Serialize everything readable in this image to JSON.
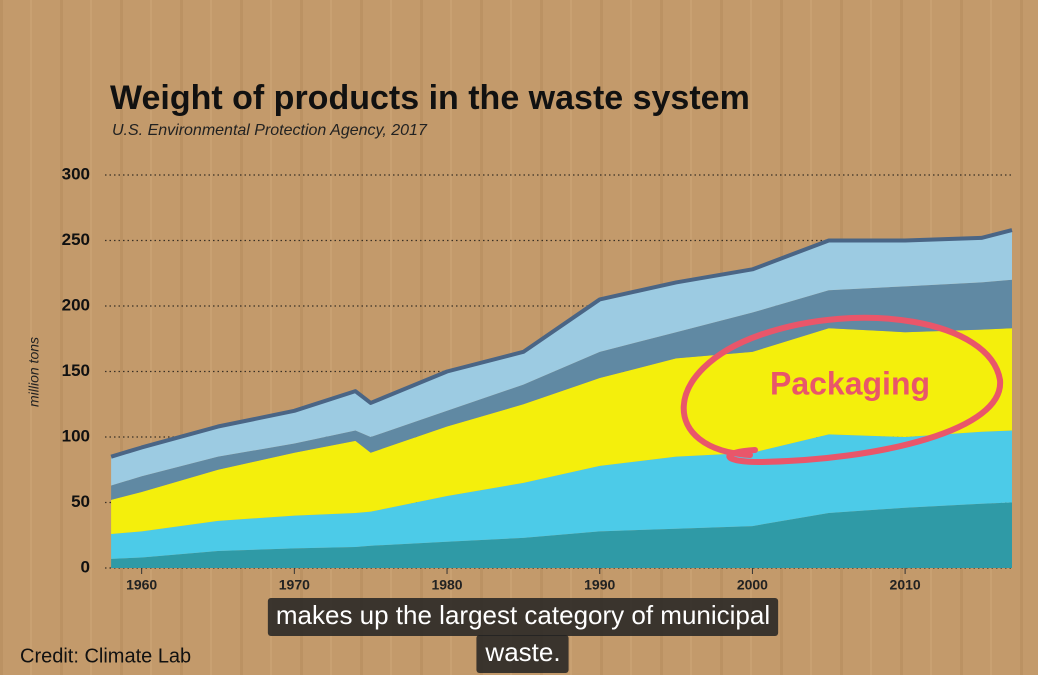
{
  "chart_data": {
    "type": "stacked-area",
    "title": "Weight of products in the waste system",
    "subtitle": "U.S. Environmental Protection Agency, 2017",
    "y_label": "million tons",
    "annotation": "Packaging",
    "caption": [
      "makes up the largest category of municipal",
      "waste."
    ],
    "credit": "Credit: Climate Lab",
    "x": [
      1958,
      1960,
      1965,
      1970,
      1974,
      1975,
      1980,
      1985,
      1990,
      1995,
      2000,
      2005,
      2010,
      2015,
      2017
    ],
    "series": [
      {
        "color": "#2f9aa6",
        "values": [
          7,
          8,
          13,
          15,
          16,
          17,
          20,
          23,
          28,
          30,
          32,
          42,
          46,
          49,
          50
        ]
      },
      {
        "color": "#4ccbe8",
        "values": [
          19,
          20,
          23,
          25,
          26,
          26,
          35,
          42,
          50,
          55,
          56,
          60,
          54,
          55,
          55
        ]
      },
      {
        "color": "#f4ef0c",
        "values": [
          26,
          30,
          39,
          48,
          55,
          45,
          53,
          60,
          67,
          75,
          77,
          81,
          80,
          78,
          78
        ]
      },
      {
        "color": "#6089a3",
        "values": [
          11,
          12,
          10,
          7,
          8,
          12,
          12,
          15,
          20,
          20,
          30,
          29,
          35,
          36,
          37
        ]
      },
      {
        "color": "#9ccbe2",
        "values": [
          22,
          22,
          23,
          25,
          30,
          26,
          30,
          25,
          40,
          38,
          33,
          38,
          35,
          34,
          38
        ]
      }
    ],
    "outline_color": "#4a6585",
    "annotation_color": "#e9566a",
    "xlim": [
      1957.6,
      2017
    ],
    "ylim": [
      0,
      300
    ],
    "xticks": [
      1960,
      1970,
      1980,
      1990,
      2000,
      2010
    ],
    "yticks": [
      0,
      50,
      100,
      150,
      200,
      250,
      300
    ],
    "grid": true
  }
}
